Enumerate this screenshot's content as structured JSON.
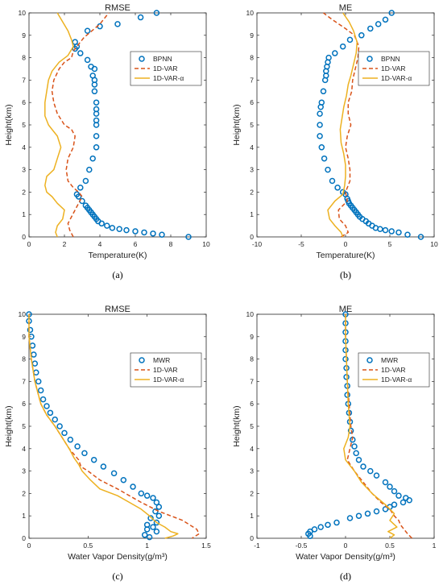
{
  "colors": {
    "series1": "#0072BD",
    "series2": "#D95319",
    "series3": "#EDB120",
    "axis": "#262626"
  },
  "chart_data": [
    {
      "type": "line",
      "panel": "a",
      "caption": "(a)",
      "title": "RMSE",
      "xlabel": "Temperature(K)",
      "ylabel": "Height(km)",
      "xlim": [
        0,
        10
      ],
      "ylim": [
        0,
        10
      ],
      "xticks": [
        0,
        2,
        4,
        6,
        8,
        10
      ],
      "yticks": [
        0,
        1,
        2,
        3,
        4,
        5,
        6,
        7,
        8,
        9,
        10
      ],
      "grid": false,
      "legend": "top-right",
      "series": [
        {
          "name": "BPNN",
          "style": "markers",
          "x": [
            9.0,
            7.5,
            7.0,
            6.5,
            6.0,
            5.5,
            5.1,
            4.7,
            4.4,
            4.1,
            3.9,
            3.8,
            3.7,
            3.6,
            3.5,
            3.4,
            3.3,
            3.2,
            3.0,
            2.8,
            2.7,
            2.9,
            3.2,
            3.4,
            3.6,
            3.8,
            3.8,
            3.8,
            3.8,
            3.8,
            3.7,
            3.7,
            3.7,
            3.8,
            3.8,
            3.7,
            3.6,
            3.5,
            3.3,
            2.9,
            2.7,
            2.6,
            2.6,
            3.3,
            4.0,
            5.0,
            6.3,
            7.2
          ],
          "y": [
            0.0,
            0.1,
            0.15,
            0.2,
            0.25,
            0.3,
            0.35,
            0.4,
            0.5,
            0.6,
            0.7,
            0.8,
            0.9,
            1.0,
            1.1,
            1.2,
            1.3,
            1.4,
            1.6,
            1.8,
            1.9,
            2.2,
            2.5,
            3.0,
            3.5,
            4.0,
            4.5,
            5.0,
            5.5,
            6.0,
            6.5,
            7.0,
            7.5,
            5.2,
            5.7,
            6.8,
            7.2,
            7.6,
            7.9,
            8.2,
            8.5,
            8.7,
            8.4,
            9.2,
            9.4,
            9.5,
            9.8,
            10.0
          ]
        },
        {
          "name": "1D-VAR",
          "style": "dashed",
          "x": [
            2.5,
            2.3,
            2.2,
            2.4,
            2.6,
            2.8,
            3.0,
            2.8,
            2.5,
            2.2,
            2.1,
            2.2,
            2.5,
            2.6,
            2.4,
            2.0,
            1.6,
            1.4,
            1.3,
            1.4,
            1.7,
            2.0,
            2.4,
            2.5,
            3.1,
            4.0,
            4.5
          ],
          "y": [
            0.0,
            0.3,
            0.6,
            0.9,
            1.2,
            1.5,
            1.8,
            2.0,
            2.2,
            2.5,
            3.0,
            3.5,
            4.0,
            4.5,
            4.8,
            5.0,
            5.5,
            6.0,
            6.5,
            7.0,
            7.5,
            7.8,
            8.0,
            8.3,
            8.9,
            9.5,
            10.0
          ]
        },
        {
          "name": "1D-VAR-α",
          "style": "solid",
          "x": [
            1.6,
            1.5,
            1.6,
            1.9,
            2.0,
            1.6,
            1.3,
            1.0,
            0.9,
            1.0,
            1.4,
            1.6,
            1.8,
            1.6,
            1.3,
            1.1,
            0.9,
            0.9,
            1.0,
            1.1,
            1.3,
            1.7,
            2.2,
            2.5,
            2.4,
            2.2,
            1.9,
            1.6
          ],
          "y": [
            0.0,
            0.2,
            0.5,
            0.8,
            1.2,
            1.5,
            1.8,
            2.0,
            2.3,
            2.7,
            3.0,
            3.5,
            4.0,
            4.5,
            4.8,
            5.0,
            5.4,
            6.0,
            6.5,
            7.0,
            7.4,
            7.8,
            8.1,
            8.5,
            8.8,
            9.2,
            9.6,
            10.0
          ]
        }
      ]
    },
    {
      "type": "line",
      "panel": "b",
      "caption": "(b)",
      "title": "ME",
      "xlabel": "Temperature(K)",
      "ylabel": "Height(km)",
      "xlim": [
        -10,
        10
      ],
      "ylim": [
        0,
        10
      ],
      "xticks": [
        -10,
        -5,
        0,
        5,
        10
      ],
      "yticks": [
        0,
        1,
        2,
        3,
        4,
        5,
        6,
        7,
        8,
        9,
        10
      ],
      "grid": false,
      "legend": "top-right",
      "series": [
        {
          "name": "BPNN",
          "style": "markers",
          "x": [
            8.5,
            7.0,
            6.0,
            5.2,
            4.5,
            3.9,
            3.4,
            3.0,
            2.6,
            2.3,
            1.9,
            1.6,
            1.4,
            1.2,
            1.0,
            0.8,
            0.6,
            0.4,
            0.3,
            0.2,
            0.0,
            -0.3,
            -0.9,
            -1.5,
            -2.0,
            -2.4,
            -2.7,
            -2.9,
            -2.9,
            -2.9,
            -2.8,
            -2.7,
            -2.5,
            -2.3,
            -2.2,
            -2.2,
            -2.1,
            -2.0,
            -1.9,
            -1.2,
            -0.3,
            0.5,
            1.8,
            2.8,
            3.7,
            4.5,
            5.2
          ],
          "y": [
            0.0,
            0.1,
            0.2,
            0.25,
            0.3,
            0.35,
            0.4,
            0.5,
            0.6,
            0.7,
            0.8,
            0.9,
            1.0,
            1.1,
            1.2,
            1.3,
            1.4,
            1.5,
            1.6,
            1.7,
            1.9,
            2.0,
            2.2,
            2.5,
            3.0,
            3.5,
            4.0,
            4.5,
            5.0,
            5.5,
            5.8,
            6.0,
            6.5,
            7.0,
            7.2,
            7.4,
            7.6,
            7.8,
            8.0,
            8.2,
            8.5,
            8.8,
            9.0,
            9.3,
            9.5,
            9.7,
            10.0
          ]
        },
        {
          "name": "1D-VAR",
          "style": "dashed",
          "x": [
            -0.5,
            0.3,
            0.0,
            -0.7,
            -0.8,
            0.2,
            0.0,
            0.5,
            0.5,
            0.3,
            0.0,
            0.2,
            0.6,
            0.3,
            0.3,
            0.7,
            0.8,
            1.1,
            1.4,
            1.5,
            1.0,
            0.0,
            -1.5,
            -2.5
          ],
          "y": [
            0.0,
            0.2,
            0.5,
            0.8,
            1.2,
            1.6,
            2.0,
            2.5,
            3.0,
            3.5,
            4.0,
            4.5,
            5.0,
            5.5,
            6.0,
            6.5,
            7.0,
            7.5,
            8.0,
            8.5,
            9.0,
            9.3,
            9.7,
            10.0
          ]
        },
        {
          "name": "1D-VAR-α",
          "style": "solid",
          "x": [
            -0.3,
            -0.5,
            -1.2,
            -1.8,
            -2.0,
            -1.2,
            -0.3,
            -0.1,
            0.0,
            0.0,
            -0.2,
            -0.5,
            -0.6,
            -0.4,
            -0.2,
            0.1,
            0.3,
            0.6,
            0.9,
            1.2,
            1.3,
            0.9,
            0.4,
            -0.3
          ],
          "y": [
            0.0,
            0.2,
            0.5,
            0.8,
            1.2,
            1.6,
            1.9,
            2.3,
            2.7,
            3.2,
            3.7,
            4.2,
            4.8,
            5.3,
            5.8,
            6.3,
            6.8,
            7.2,
            7.7,
            8.2,
            8.7,
            9.2,
            9.6,
            10.0
          ]
        }
      ]
    },
    {
      "type": "line",
      "panel": "c",
      "caption": "(c)",
      "title": "RMSE",
      "xlabel": "Water Vapor Density(g/m³)",
      "ylabel": "Height(km)",
      "xlim": [
        0,
        1.5
      ],
      "ylim": [
        0,
        10
      ],
      "xticks": [
        0,
        0.5,
        1,
        1.5
      ],
      "yticks": [
        0,
        1,
        2,
        3,
        4,
        5,
        6,
        7,
        8,
        9,
        10
      ],
      "grid": false,
      "legend": "top-right",
      "series": [
        {
          "name": "MWR",
          "style": "markers",
          "x": [
            0.0,
            0.0,
            0.01,
            0.02,
            0.03,
            0.04,
            0.05,
            0.06,
            0.08,
            0.1,
            0.12,
            0.15,
            0.18,
            0.22,
            0.26,
            0.3,
            0.35,
            0.41,
            0.47,
            0.55,
            0.63,
            0.72,
            0.8,
            0.88,
            0.95,
            1.0,
            1.05,
            1.08,
            1.1,
            1.07,
            1.1,
            1.03,
            1.08,
            1.0,
            1.05,
            1.0,
            1.08,
            0.98,
            1.02
          ],
          "y": [
            10.0,
            9.7,
            9.3,
            9.0,
            8.6,
            8.2,
            7.8,
            7.4,
            7.0,
            6.6,
            6.2,
            5.9,
            5.6,
            5.3,
            5.0,
            4.7,
            4.4,
            4.1,
            3.8,
            3.5,
            3.2,
            2.9,
            2.6,
            2.3,
            2.0,
            1.9,
            1.8,
            1.6,
            1.4,
            1.2,
            1.0,
            0.9,
            0.7,
            0.6,
            0.5,
            0.4,
            0.3,
            0.15,
            0.05
          ]
        },
        {
          "name": "1D-VAR",
          "style": "dashed",
          "x": [
            0.0,
            0.0,
            0.02,
            0.05,
            0.1,
            0.15,
            0.22,
            0.28,
            0.34,
            0.42,
            0.44,
            0.5,
            0.6,
            0.75,
            0.85,
            0.95,
            1.1,
            1.3,
            1.42,
            1.44,
            1.38
          ],
          "y": [
            10.0,
            9.0,
            8.0,
            7.0,
            6.0,
            5.5,
            5.0,
            4.5,
            4.0,
            3.5,
            3.2,
            3.0,
            2.6,
            2.2,
            1.9,
            1.6,
            1.2,
            0.8,
            0.4,
            0.2,
            0.0
          ]
        },
        {
          "name": "1D-VAR-α",
          "style": "solid",
          "x": [
            0.0,
            0.0,
            0.02,
            0.05,
            0.1,
            0.15,
            0.22,
            0.28,
            0.34,
            0.38,
            0.42,
            0.45,
            0.52,
            0.6,
            0.75,
            0.85,
            0.95,
            1.02,
            1.08,
            1.15,
            1.2,
            1.26,
            1.22,
            1.15
          ],
          "y": [
            10.0,
            9.0,
            8.0,
            7.0,
            6.0,
            5.5,
            5.0,
            4.5,
            4.0,
            3.6,
            3.3,
            3.0,
            2.6,
            2.2,
            1.9,
            1.6,
            1.3,
            1.0,
            0.7,
            0.5,
            0.3,
            0.2,
            0.1,
            0.0
          ]
        }
      ]
    },
    {
      "type": "line",
      "panel": "d",
      "caption": "(d)",
      "title": "ME",
      "xlabel": "Water Vapor Density(g/m³)",
      "ylabel": "Height(km)",
      "xlim": [
        -1,
        1
      ],
      "ylim": [
        0,
        10
      ],
      "xticks": [
        -1,
        -0.5,
        0,
        0.5,
        1
      ],
      "yticks": [
        0,
        1,
        2,
        3,
        4,
        5,
        6,
        7,
        8,
        9,
        10
      ],
      "grid": false,
      "legend": "top-right",
      "series": [
        {
          "name": "MWR",
          "style": "markers",
          "x": [
            0.0,
            0.0,
            0.0,
            0.0,
            0.0,
            0.0,
            0.01,
            0.01,
            0.02,
            0.02,
            0.03,
            0.04,
            0.05,
            0.06,
            0.08,
            0.1,
            0.12,
            0.15,
            0.2,
            0.28,
            0.35,
            0.45,
            0.5,
            0.55,
            0.6,
            0.68,
            0.72,
            0.65,
            0.55,
            0.5,
            0.45,
            0.35,
            0.25,
            0.15,
            0.05,
            -0.1,
            -0.2,
            -0.28,
            -0.35,
            -0.4,
            -0.42,
            -0.4
          ],
          "y": [
            10.0,
            9.6,
            9.2,
            8.8,
            8.4,
            8.0,
            7.6,
            7.2,
            6.8,
            6.4,
            6.0,
            5.6,
            5.2,
            4.8,
            4.4,
            4.1,
            3.8,
            3.5,
            3.2,
            3.0,
            2.8,
            2.5,
            2.3,
            2.1,
            1.9,
            1.8,
            1.7,
            1.6,
            1.5,
            1.4,
            1.3,
            1.2,
            1.1,
            1.0,
            0.9,
            0.7,
            0.6,
            0.5,
            0.4,
            0.3,
            0.2,
            0.1
          ]
        },
        {
          "name": "1D-VAR",
          "style": "dashed",
          "x": [
            0.0,
            0.0,
            0.01,
            0.02,
            0.04,
            0.06,
            0.08,
            0.05,
            0.02,
            0.1,
            0.2,
            0.3,
            0.4,
            0.5,
            0.55,
            0.6,
            0.62,
            0.66,
            0.7,
            0.75
          ],
          "y": [
            10.0,
            9.0,
            8.0,
            7.0,
            6.0,
            5.0,
            4.5,
            4.0,
            3.5,
            3.0,
            2.5,
            2.0,
            1.6,
            1.3,
            1.0,
            0.8,
            0.6,
            0.4,
            0.2,
            0.0
          ]
        },
        {
          "name": "1D-VAR-α",
          "style": "solid",
          "x": [
            0.0,
            0.0,
            0.01,
            0.02,
            0.03,
            0.05,
            0.03,
            -0.02,
            0.0,
            0.1,
            0.18,
            0.3,
            0.45,
            0.55,
            0.5,
            0.58,
            0.48,
            0.55,
            0.5
          ],
          "y": [
            10.0,
            9.0,
            8.0,
            7.0,
            6.0,
            5.0,
            4.5,
            4.0,
            3.5,
            3.0,
            2.5,
            2.0,
            1.5,
            1.1,
            0.8,
            0.5,
            0.3,
            0.15,
            0.0
          ]
        }
      ]
    }
  ]
}
